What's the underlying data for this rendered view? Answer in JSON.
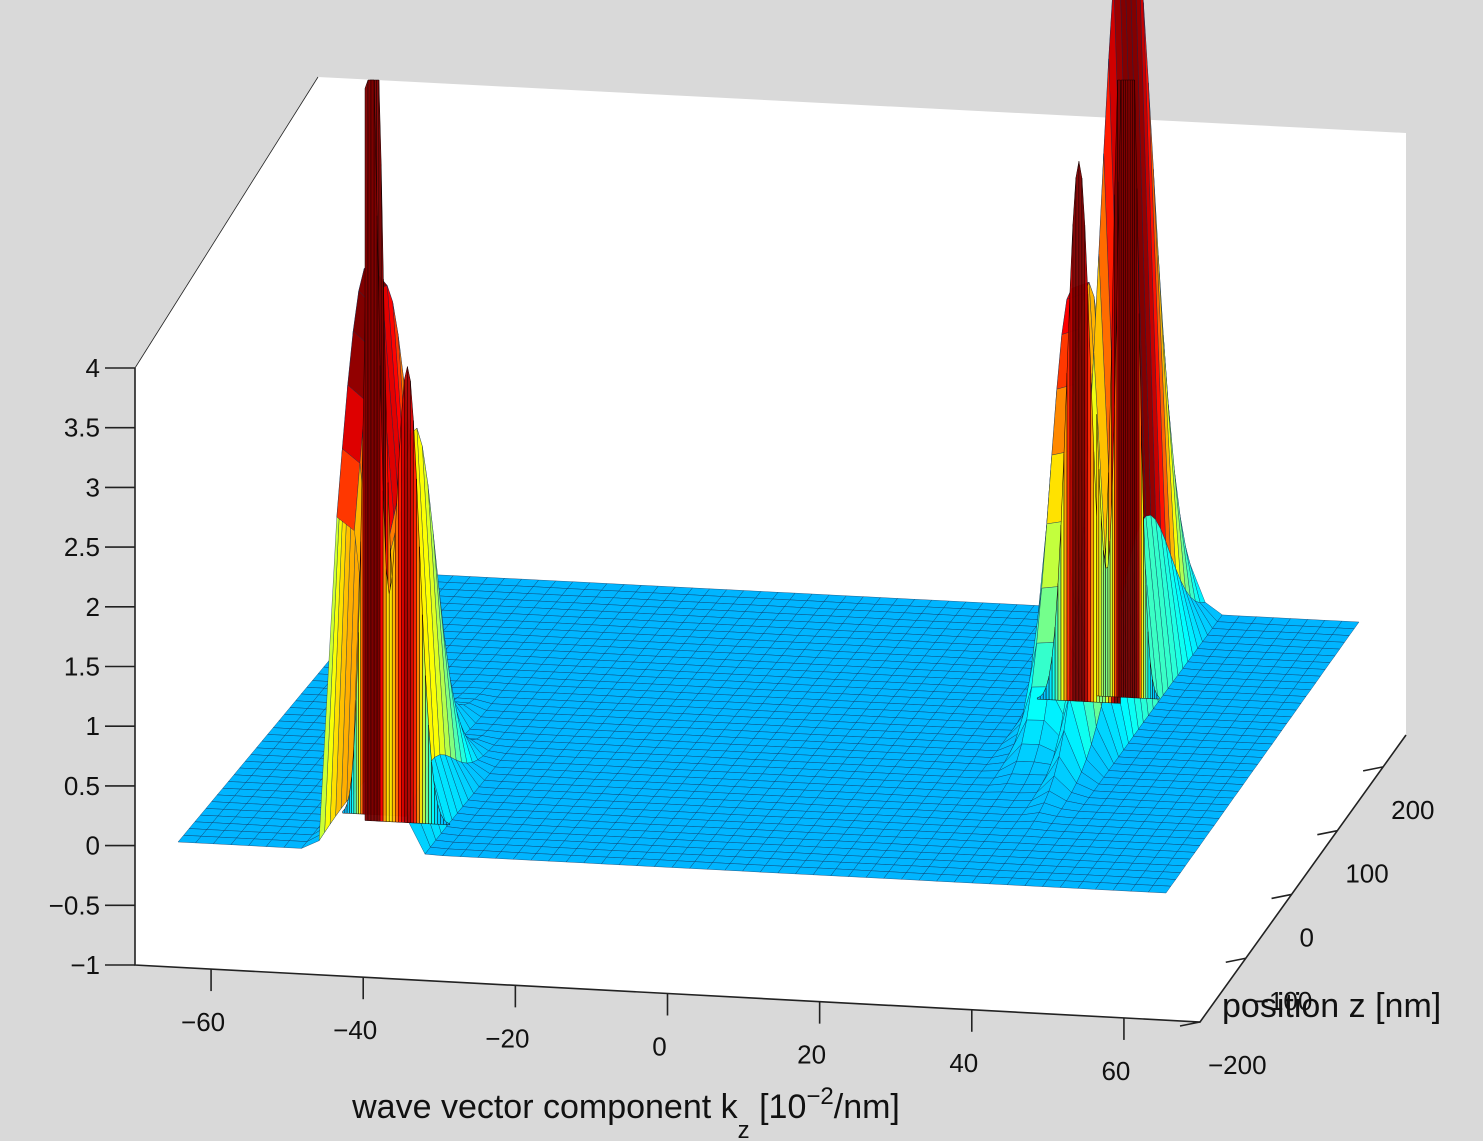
{
  "chart_data": {
    "type": "surface",
    "background_color": "#d9d9d9",
    "box_color": "#ffffff",
    "colormap": [
      "#00008f",
      "#0000ff",
      "#0080ff",
      "#00ffff",
      "#80ff80",
      "#ffff00",
      "#ff8000",
      "#ff0000",
      "#800000"
    ],
    "grid": false,
    "x_axis": {
      "label_main": "wave vector component k",
      "label_sub": "z",
      "label_pre": " [10",
      "label_sup": "−2",
      "label_post": "/nm]",
      "range": [
        -70,
        70
      ],
      "ticks": [
        -60,
        -40,
        -20,
        0,
        20,
        40,
        60
      ],
      "tick_labels": [
        "−60",
        "−40",
        "−20",
        "0",
        "20",
        "40",
        "60"
      ]
    },
    "y_axis": {
      "label": "position z [nm]",
      "range": [
        -200,
        250
      ],
      "ticks": [
        -200,
        -100,
        0,
        100,
        200
      ],
      "tick_labels": [
        "−200",
        "−100",
        "0",
        "100",
        "200"
      ]
    },
    "z_axis": {
      "range": [
        -1,
        4
      ],
      "ticks": [
        -1,
        -0.5,
        0,
        0.5,
        1,
        1.5,
        2,
        2.5,
        3,
        3.5,
        4
      ],
      "tick_labels": [
        "−1",
        "−0.5",
        "0",
        "0.5",
        "1",
        "1.5",
        "2",
        "2.5",
        "3",
        "3.5",
        "4"
      ]
    },
    "surface_extent": {
      "x": [
        -65,
        65
      ],
      "y": [
        -200,
        250
      ]
    },
    "peaks": [
      {
        "kz": -43,
        "z": -140,
        "height": 7.0,
        "width_kz": 1.2,
        "width_z": 60
      },
      {
        "kz": -38,
        "z": -150,
        "height": 3.8,
        "width_kz": 1.6,
        "width_z": 45
      },
      {
        "kz": 36,
        "z": 100,
        "height": 4.5,
        "width_kz": 1.6,
        "width_z": 45
      },
      {
        "kz": 42,
        "z": 110,
        "height": 7.0,
        "width_kz": 1.2,
        "width_z": 60
      }
    ]
  }
}
